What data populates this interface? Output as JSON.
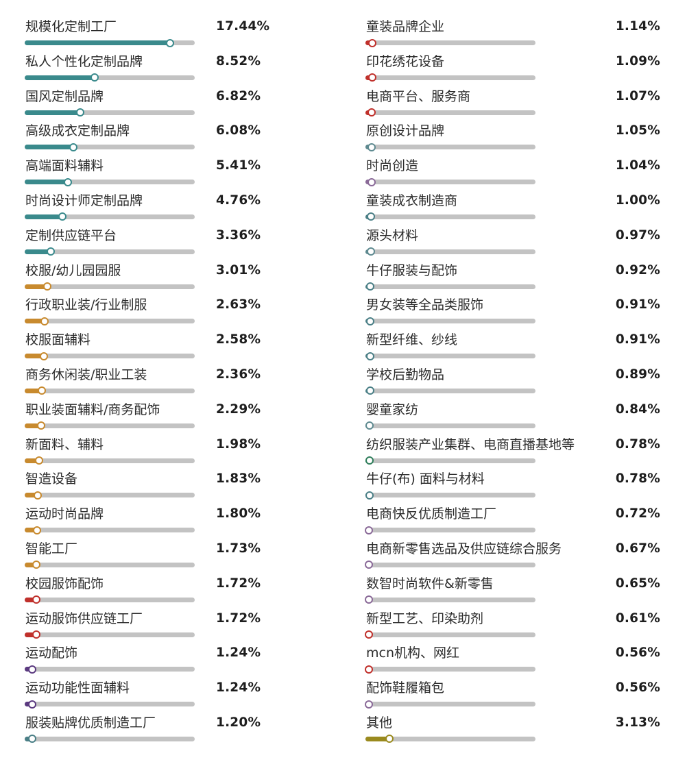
{
  "chart_data": {
    "type": "bar",
    "value_max": 20,
    "left_items": [
      {
        "label": "规模化定制工厂",
        "value": 17.44,
        "value_text": "17.44%",
        "color": "#3a8a8c"
      },
      {
        "label": "私人个性化定制品牌",
        "value": 8.52,
        "value_text": "8.52%",
        "color": "#3a8a8c"
      },
      {
        "label": "国风定制品牌",
        "value": 6.82,
        "value_text": "6.82%",
        "color": "#3a8a8c"
      },
      {
        "label": "高级成衣定制品牌",
        "value": 6.08,
        "value_text": "6.08%",
        "color": "#3a8a8c"
      },
      {
        "label": "高端面料辅料",
        "value": 5.41,
        "value_text": "5.41%",
        "color": "#3a8a8c"
      },
      {
        "label": "时尚设计师定制品牌",
        "value": 4.76,
        "value_text": "4.76%",
        "color": "#3a8a8c"
      },
      {
        "label": "定制供应链平台",
        "value": 3.36,
        "value_text": "3.36%",
        "color": "#3a8a8c"
      },
      {
        "label": "校服/幼儿园园服",
        "value": 3.01,
        "value_text": "3.01%",
        "color": "#c88a2e"
      },
      {
        "label": "行政职业装/行业制服",
        "value": 2.63,
        "value_text": "2.63%",
        "color": "#c88a2e"
      },
      {
        "label": "校服面辅料",
        "value": 2.58,
        "value_text": "2.58%",
        "color": "#c88a2e"
      },
      {
        "label": "商务休闲装/职业工装",
        "value": 2.36,
        "value_text": "2.36%",
        "color": "#c88a2e"
      },
      {
        "label": "职业装面辅料/商务配饰",
        "value": 2.29,
        "value_text": "2.29%",
        "color": "#c88a2e"
      },
      {
        "label": "新面料、辅料",
        "value": 1.98,
        "value_text": "1.98%",
        "color": "#c88a2e"
      },
      {
        "label": "智造设备",
        "value": 1.83,
        "value_text": "1.83%",
        "color": "#c88a2e"
      },
      {
        "label": "运动时尚品牌",
        "value": 1.8,
        "value_text": "1.80%",
        "color": "#c88a2e"
      },
      {
        "label": "智能工厂",
        "value": 1.73,
        "value_text": "1.73%",
        "color": "#c88a2e"
      },
      {
        "label": "校园服饰配饰",
        "value": 1.72,
        "value_text": "1.72%",
        "color": "#c0302b"
      },
      {
        "label": "运动服饰供应链工厂",
        "value": 1.72,
        "value_text": "1.72%",
        "color": "#c0302b"
      },
      {
        "label": "运动配饰",
        "value": 1.24,
        "value_text": "1.24%",
        "color": "#5b3a80"
      },
      {
        "label": "运动功能性面辅料",
        "value": 1.24,
        "value_text": "1.24%",
        "color": "#5b3a80"
      },
      {
        "label": "服装贴牌优质制造工厂",
        "value": 1.2,
        "value_text": "1.20%",
        "color": "#4a7f86"
      }
    ],
    "right_items": [
      {
        "label": "童装品牌企业",
        "value": 1.14,
        "value_text": "1.14%",
        "color": "#c0302b"
      },
      {
        "label": "印花绣花设备",
        "value": 1.09,
        "value_text": "1.09%",
        "color": "#c0302b"
      },
      {
        "label": "电商平台、服务商",
        "value": 1.07,
        "value_text": "1.07%",
        "color": "#c0302b"
      },
      {
        "label": "原创设计品牌",
        "value": 1.05,
        "value_text": "1.05%",
        "color": "#5e8a90"
      },
      {
        "label": "时尚创造",
        "value": 1.04,
        "value_text": "1.04%",
        "color": "#8a6a98"
      },
      {
        "label": "童装成衣制造商",
        "value": 1.0,
        "value_text": "1.00%",
        "color": "#4a7f86"
      },
      {
        "label": "源头材料",
        "value": 0.97,
        "value_text": "0.97%",
        "color": "#5e8a90"
      },
      {
        "label": "牛仔服装与配饰",
        "value": 0.92,
        "value_text": "0.92%",
        "color": "#4a7f86"
      },
      {
        "label": "男女装等全品类服饰",
        "value": 0.91,
        "value_text": "0.91%",
        "color": "#4a7f86"
      },
      {
        "label": "新型纤维、纱线",
        "value": 0.91,
        "value_text": "0.91%",
        "color": "#4a7f86"
      },
      {
        "label": "学校后勤物品",
        "value": 0.89,
        "value_text": "0.89%",
        "color": "#4a7f86"
      },
      {
        "label": "婴童家纺",
        "value": 0.84,
        "value_text": "0.84%",
        "color": "#5e8a90"
      },
      {
        "label": "纺织服装产业集群、电商直播基地等",
        "value": 0.78,
        "value_text": "0.78%",
        "color": "#2e7d5a"
      },
      {
        "label": "牛仔(布) 面料与材料",
        "value": 0.78,
        "value_text": "0.78%",
        "color": "#4a7f86"
      },
      {
        "label": "电商快反优质制造工厂",
        "value": 0.72,
        "value_text": "0.72%",
        "color": "#8a6a98"
      },
      {
        "label": "电商新零售选品及供应链综合服务",
        "value": 0.67,
        "value_text": "0.67%",
        "color": "#8a6a98"
      },
      {
        "label": "数智时尚软件&新零售",
        "value": 0.65,
        "value_text": "0.65%",
        "color": "#8a6a98"
      },
      {
        "label": "新型工艺、印染助剂",
        "value": 0.61,
        "value_text": "0.61%",
        "color": "#c0302b"
      },
      {
        "label": "mcn机构、网红",
        "value": 0.56,
        "value_text": "0.56%",
        "color": "#c0302b"
      },
      {
        "label": "配饰鞋履箱包",
        "value": 0.56,
        "value_text": "0.56%",
        "color": "#8a6a98"
      },
      {
        "label": "其他",
        "value": 3.13,
        "value_text": "3.13%",
        "color": "#9a8a1e"
      }
    ]
  }
}
